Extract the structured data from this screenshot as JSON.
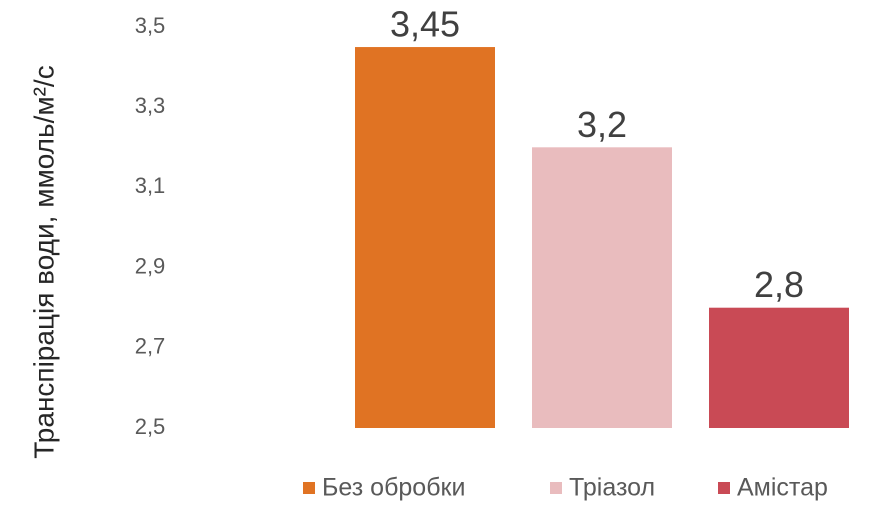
{
  "chart_data": {
    "type": "bar",
    "y_label": "Транспірація води, ммоль/м²/с",
    "categories": [
      null
    ],
    "series": [
      {
        "name": "Без обробки",
        "color": "#E07323",
        "values": [
          3.45
        ],
        "value_labels": [
          "3,45"
        ]
      },
      {
        "name": "Тріазол",
        "color": "#E9BCBE",
        "values": [
          3.2
        ],
        "value_labels": [
          "3,2"
        ]
      },
      {
        "name": "Амістар",
        "color": "#C94A55",
        "values": [
          2.8
        ],
        "value_labels": [
          "2,8"
        ]
      }
    ],
    "ylim": [
      2.5,
      3.5
    ],
    "yticks": [
      {
        "value": 2.5,
        "label": "2,5"
      },
      {
        "value": 2.7,
        "label": "2,7"
      },
      {
        "value": 2.9,
        "label": "2,9"
      },
      {
        "value": 3.1,
        "label": "3,1"
      },
      {
        "value": 3.3,
        "label": "3,3"
      },
      {
        "value": 3.5,
        "label": "3,5"
      }
    ],
    "grid": false,
    "legend": "bottom"
  }
}
